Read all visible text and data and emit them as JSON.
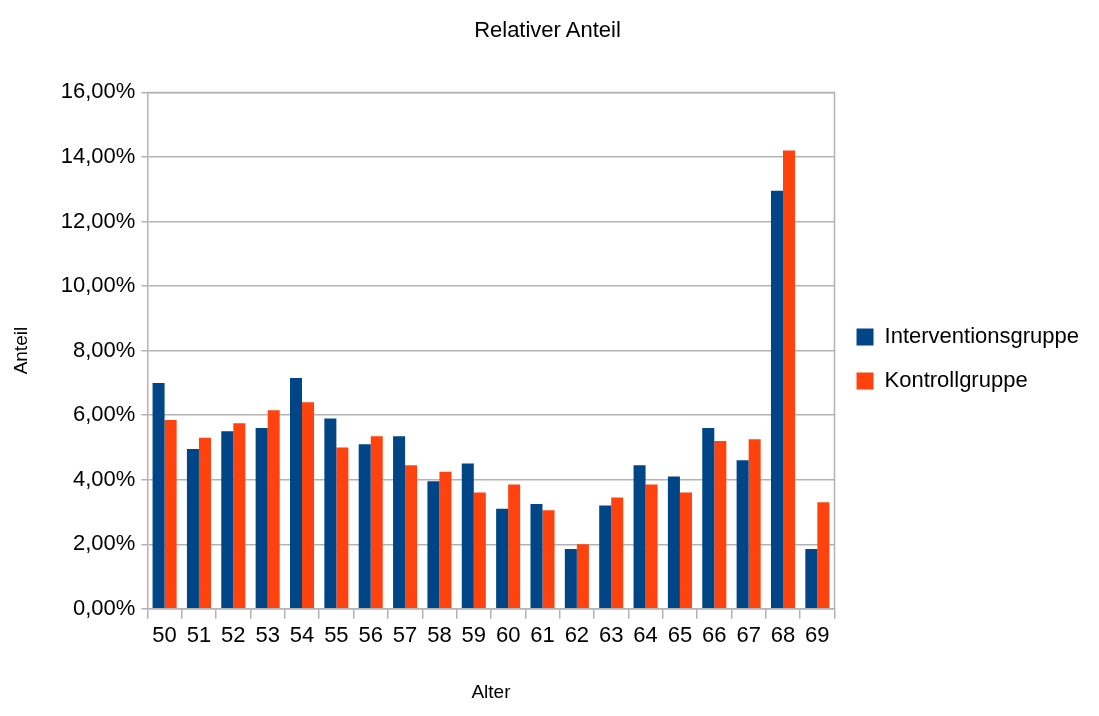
{
  "chart_data": {
    "type": "bar",
    "title": "Relativer Anteil",
    "xlabel": "Alter",
    "ylabel": "Anteil",
    "categories": [
      "50",
      "51",
      "52",
      "53",
      "54",
      "55",
      "56",
      "57",
      "58",
      "59",
      "60",
      "61",
      "62",
      "63",
      "64",
      "65",
      "66",
      "67",
      "68",
      "69"
    ],
    "series": [
      {
        "name": "Interventionsgruppe",
        "color": "#004586",
        "values": [
          7.0,
          4.95,
          5.5,
          5.6,
          7.15,
          5.9,
          5.1,
          5.35,
          3.95,
          4.5,
          3.1,
          3.25,
          1.85,
          3.2,
          4.45,
          4.1,
          5.6,
          4.6,
          12.95,
          1.85
        ]
      },
      {
        "name": "Kontrollgruppe",
        "color": "#ff420e",
        "values": [
          5.85,
          5.3,
          5.75,
          6.15,
          6.4,
          5.0,
          5.35,
          4.45,
          4.25,
          3.6,
          3.85,
          3.05,
          2.0,
          3.45,
          3.85,
          3.6,
          5.2,
          5.25,
          14.2,
          3.3
        ]
      }
    ],
    "ylim": [
      0,
      16
    ],
    "yticks": [
      {
        "value": 0,
        "label": "0,00%"
      },
      {
        "value": 2,
        "label": "2,00%"
      },
      {
        "value": 4,
        "label": "4,00%"
      },
      {
        "value": 6,
        "label": "6,00%"
      },
      {
        "value": 8,
        "label": "8,00%"
      },
      {
        "value": 10,
        "label": "10,00%"
      },
      {
        "value": 12,
        "label": "12,00%"
      },
      {
        "value": 14,
        "label": "14,00%"
      },
      {
        "value": 16,
        "label": "16,00%"
      }
    ],
    "grid": "y",
    "legend": "right"
  }
}
